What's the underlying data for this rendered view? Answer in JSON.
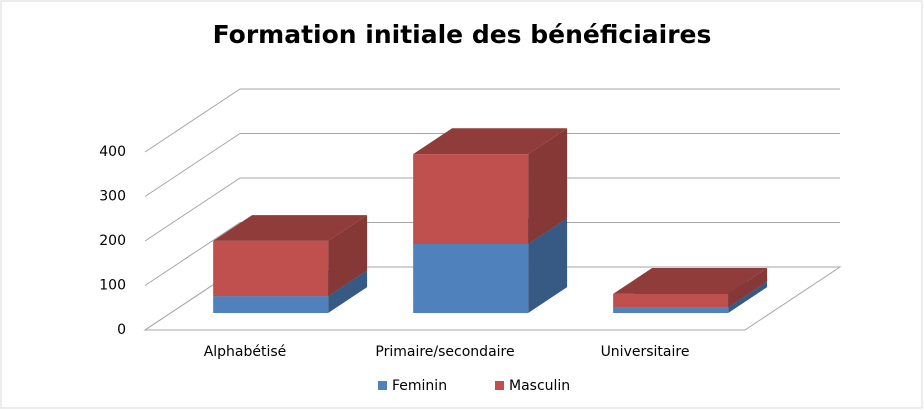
{
  "chart_data": {
    "type": "bar3d_stacked",
    "title": "Formation initiale des bénéficiaires",
    "categories": [
      "Alphabétisé",
      "Primaire/secondaire",
      "Universitaire"
    ],
    "series": [
      {
        "name": "Feminin",
        "color": "#4f81bd",
        "values": [
          38,
          155,
          13
        ]
      },
      {
        "name": "Masculin",
        "color": "#c0504d",
        "values": [
          124,
          202,
          30
        ]
      }
    ],
    "ylim": [
      0,
      400
    ],
    "yticks": [
      0,
      100,
      200,
      300,
      400
    ],
    "grid": true,
    "legend": "bottom"
  }
}
